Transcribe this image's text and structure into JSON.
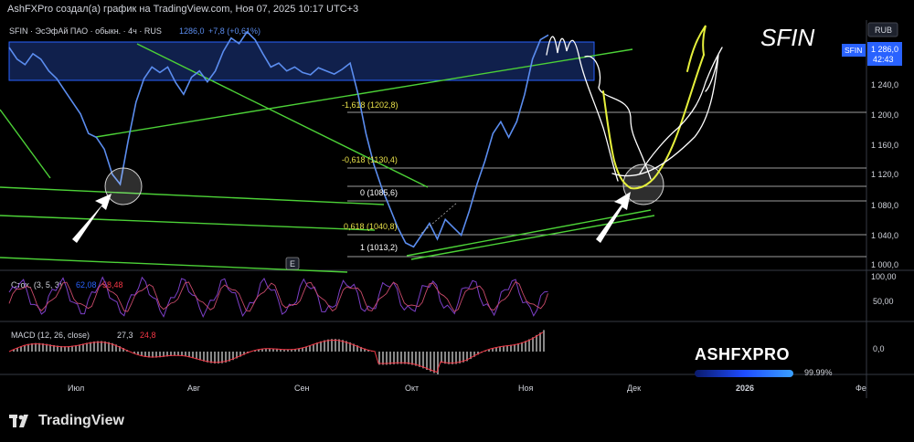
{
  "header": {
    "caption": "AshFXPro создал(а) график на TradingView.com, Ноя 07, 2025 10:17 UTC+3"
  },
  "legend": {
    "symbol": "SFIN · ЭсЭфАй ПАО · обыкн. · 4ч · RUS",
    "last": "1286,0",
    "change": "+7,8 (+0,61%)"
  },
  "annotation": {
    "big_label": "SFIN",
    "e_badge": "E"
  },
  "price_axis": {
    "currency": "RUB",
    "ticks": [
      "1 240,0",
      "1 200,0",
      "1 160,0",
      "1 120,0",
      "1 080,0",
      "1 040,0",
      "1 000,0"
    ],
    "tag_symbol": "SFIN",
    "tag_price": "1 286,0",
    "tag_time": "42:43"
  },
  "fib_labels": [
    {
      "text": "-1,618 (1202,8)",
      "color": "#e8e04a"
    },
    {
      "text": "-0,618 (1130,4)",
      "color": "#e8e04a"
    },
    {
      "text": "0 (1085,6)",
      "color": "#ffffff"
    },
    {
      "text": "0,618 (1040,8)",
      "color": "#e8e04a"
    },
    {
      "text": "1 (1013,2)",
      "color": "#ffffff"
    }
  ],
  "stoch": {
    "label": "Стох. (3, 5, 3)",
    "k": "62,08",
    "d": "58,48",
    "axis": [
      "100,00",
      "50,00"
    ],
    "color_k": "#2962ff",
    "color_d": "#f23645"
  },
  "macd": {
    "label": "MACD (12, 26, close)",
    "v1": "27,3",
    "v2": "24,8",
    "axis": [
      "0,0"
    ]
  },
  "time_axis": [
    "Июл",
    "Авг",
    "Сен",
    "Окт",
    "Ноя",
    "Дек",
    "2026",
    "Фе"
  ],
  "brand": {
    "name": "ASHFXPRO",
    "percent": "99.99%",
    "progress": 0.9999
  },
  "footer": {
    "logo_text": "TradingView"
  },
  "colors": {
    "price_line": "#5b8def",
    "trend": "#4cd137",
    "zone": "#1e3a8a",
    "accent": "#2962ff",
    "drawing_yellow": "#e6f03c"
  },
  "chart_data": {
    "type": "line",
    "title": "SFIN",
    "ylabel": "RUB",
    "ylim": [
      985,
      1305
    ],
    "x_labels": [
      "Июл",
      "Авг",
      "Сен",
      "Окт",
      "Ноя",
      "Дек",
      "2026"
    ],
    "series": [
      {
        "values": [
          1270,
          1255,
          1248,
          1262,
          1255,
          1240,
          1230,
          1215,
          1200,
          1185,
          1160,
          1155,
          1140,
          1108,
          1095,
          1150,
          1200,
          1230,
          1245,
          1238,
          1245,
          1225,
          1210,
          1232,
          1240,
          1226,
          1240,
          1265,
          1282,
          1275,
          1290,
          1280,
          1262,
          1245,
          1250,
          1240,
          1245,
          1238,
          1235,
          1244,
          1240,
          1236,
          1242,
          1250,
          1210,
          1160,
          1120,
          1090,
          1065,
          1040,
          1020,
          1015,
          1030,
          1045,
          1025,
          1050,
          1040,
          1030,
          1060,
          1095,
          1125,
          1160,
          1175,
          1155,
          1175,
          1210,
          1255,
          1280,
          1286
        ]
      }
    ],
    "fibonacci": [
      {
        "level": -1.618,
        "price": 1202.8
      },
      {
        "level": -0.618,
        "price": 1130.4
      },
      {
        "level": 0,
        "price": 1085.6
      },
      {
        "level": 0.618,
        "price": 1040.8
      },
      {
        "level": 1,
        "price": 1013.2
      }
    ],
    "resistance_zone": [
      1242,
      1284
    ],
    "stochastic": {
      "k": 62.08,
      "d": 58.48,
      "range": [
        0,
        100
      ]
    },
    "macd": {
      "macd": 27.3,
      "signal": 24.8
    }
  }
}
